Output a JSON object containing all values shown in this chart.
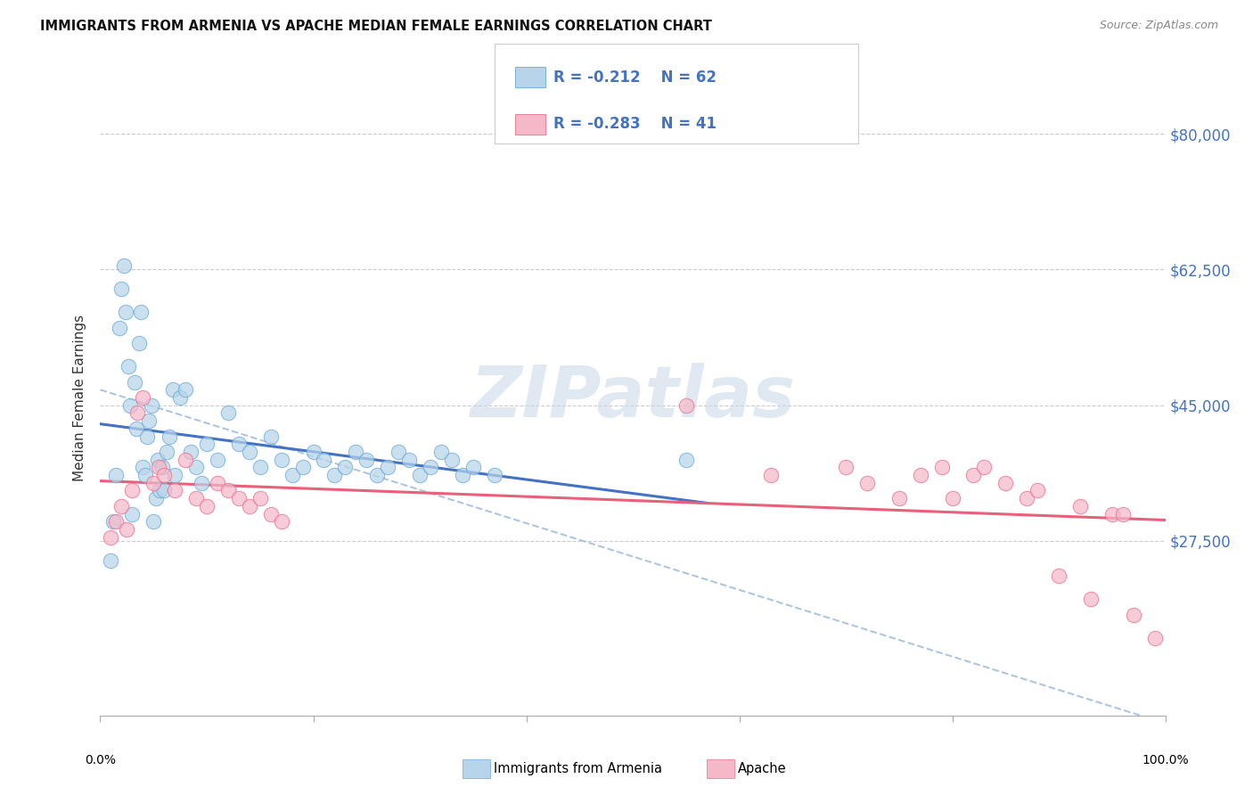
{
  "title": "IMMIGRANTS FROM ARMENIA VS APACHE MEDIAN FEMALE EARNINGS CORRELATION CHART",
  "source": "Source: ZipAtlas.com",
  "ylabel": "Median Female Earnings",
  "ytick_labels": [
    "$27,500",
    "$45,000",
    "$62,500",
    "$80,000"
  ],
  "ytick_values": [
    27500,
    45000,
    62500,
    80000
  ],
  "ylim": [
    5000,
    87000
  ],
  "xlim": [
    0,
    100
  ],
  "legend_label1": "Immigrants from Armenia",
  "legend_label2": "Apache",
  "legend_r1": "-0.212",
  "legend_n1": "62",
  "legend_r2": "-0.283",
  "legend_n2": "41",
  "watermark": "ZIPatlas",
  "blue_fill": "#b8d4ea",
  "blue_edge": "#6aaad4",
  "blue_line": "#4472c4",
  "pink_fill": "#f4b8c8",
  "pink_edge": "#e87090",
  "pink_line": "#e8607a",
  "dashed_line": "#a0bcd8",
  "scatter_blue_x": [
    1.0,
    1.2,
    1.5,
    1.8,
    2.0,
    2.2,
    2.4,
    2.6,
    2.8,
    3.0,
    3.2,
    3.4,
    3.6,
    3.8,
    4.0,
    4.2,
    4.4,
    4.6,
    4.8,
    5.0,
    5.2,
    5.4,
    5.6,
    5.8,
    6.0,
    6.2,
    6.5,
    6.8,
    7.0,
    7.5,
    8.0,
    8.5,
    9.0,
    9.5,
    10.0,
    11.0,
    12.0,
    13.0,
    14.0,
    15.0,
    16.0,
    17.0,
    18.0,
    19.0,
    20.0,
    21.0,
    22.0,
    23.0,
    24.0,
    25.0,
    26.0,
    27.0,
    28.0,
    29.0,
    30.0,
    31.0,
    32.0,
    33.0,
    34.0,
    35.0,
    37.0,
    55.0
  ],
  "scatter_blue_y": [
    25000,
    30000,
    36000,
    55000,
    60000,
    63000,
    57000,
    50000,
    45000,
    31000,
    48000,
    42000,
    53000,
    57000,
    37000,
    36000,
    41000,
    43000,
    45000,
    30000,
    33000,
    38000,
    34000,
    37000,
    34000,
    39000,
    41000,
    47000,
    36000,
    46000,
    47000,
    39000,
    37000,
    35000,
    40000,
    38000,
    44000,
    40000,
    39000,
    37000,
    41000,
    38000,
    36000,
    37000,
    39000,
    38000,
    36000,
    37000,
    39000,
    38000,
    36000,
    37000,
    39000,
    38000,
    36000,
    37000,
    39000,
    38000,
    36000,
    37000,
    36000,
    38000
  ],
  "scatter_pink_x": [
    1.0,
    1.5,
    2.0,
    2.5,
    3.0,
    3.5,
    4.0,
    5.0,
    5.5,
    6.0,
    7.0,
    8.0,
    9.0,
    10.0,
    11.0,
    12.0,
    13.0,
    14.0,
    15.0,
    16.0,
    17.0,
    55.0,
    63.0,
    70.0,
    72.0,
    75.0,
    77.0,
    79.0,
    80.0,
    82.0,
    83.0,
    85.0,
    87.0,
    88.0,
    90.0,
    92.0,
    93.0,
    95.0,
    96.0,
    97.0,
    99.0
  ],
  "scatter_pink_y": [
    28000,
    30000,
    32000,
    29000,
    34000,
    44000,
    46000,
    35000,
    37000,
    36000,
    34000,
    38000,
    33000,
    32000,
    35000,
    34000,
    33000,
    32000,
    33000,
    31000,
    30000,
    45000,
    36000,
    37000,
    35000,
    33000,
    36000,
    37000,
    33000,
    36000,
    37000,
    35000,
    33000,
    34000,
    23000,
    32000,
    20000,
    31000,
    31000,
    18000,
    15000
  ]
}
